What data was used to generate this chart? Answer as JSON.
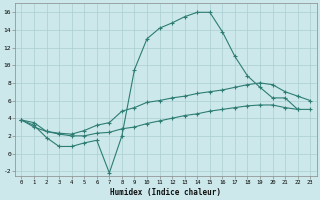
{
  "xlabel": "Humidex (Indice chaleur)",
  "ylabel": "",
  "bg_color": "#cce8ea",
  "grid_color": "#aacfd2",
  "line_color": "#2d7d74",
  "xlim": [
    -0.5,
    23.5
  ],
  "ylim": [
    -2.5,
    17
  ],
  "xticks": [
    0,
    1,
    2,
    3,
    4,
    5,
    6,
    7,
    8,
    9,
    10,
    11,
    12,
    13,
    14,
    15,
    16,
    17,
    18,
    19,
    20,
    21,
    22,
    23
  ],
  "yticks": [
    -2,
    0,
    2,
    4,
    6,
    8,
    10,
    12,
    14,
    16
  ],
  "line1_x": [
    0,
    1,
    2,
    3,
    4,
    5,
    6,
    7,
    8,
    9,
    10,
    11,
    12,
    13,
    14,
    15,
    16,
    17,
    18,
    19,
    20,
    21,
    22
  ],
  "line1_y": [
    3.8,
    3.2,
    1.8,
    0.8,
    0.8,
    1.2,
    1.5,
    -2.2,
    2.0,
    9.5,
    13.0,
    14.2,
    14.8,
    15.5,
    16.0,
    16.0,
    13.8,
    11.0,
    8.8,
    7.5,
    6.3,
    6.3,
    5.0
  ],
  "line2_x": [
    0,
    1,
    2,
    3,
    4,
    5,
    6,
    7,
    8,
    9,
    10,
    11,
    12,
    13,
    14,
    15,
    16,
    17,
    18,
    19,
    20,
    21,
    22,
    23
  ],
  "line2_y": [
    3.8,
    3.5,
    2.5,
    2.3,
    2.2,
    2.6,
    3.2,
    3.5,
    4.8,
    5.2,
    5.8,
    6.0,
    6.3,
    6.5,
    6.8,
    7.0,
    7.2,
    7.5,
    7.8,
    8.0,
    7.8,
    7.0,
    6.5,
    6.0
  ],
  "line3_x": [
    0,
    1,
    2,
    3,
    4,
    5,
    6,
    7,
    8,
    9,
    10,
    11,
    12,
    13,
    14,
    15,
    16,
    17,
    18,
    19,
    20,
    21,
    22,
    23
  ],
  "line3_y": [
    3.8,
    3.0,
    2.5,
    2.2,
    2.0,
    2.0,
    2.3,
    2.4,
    2.8,
    3.0,
    3.4,
    3.7,
    4.0,
    4.3,
    4.5,
    4.8,
    5.0,
    5.2,
    5.4,
    5.5,
    5.5,
    5.2,
    5.0,
    5.0
  ]
}
